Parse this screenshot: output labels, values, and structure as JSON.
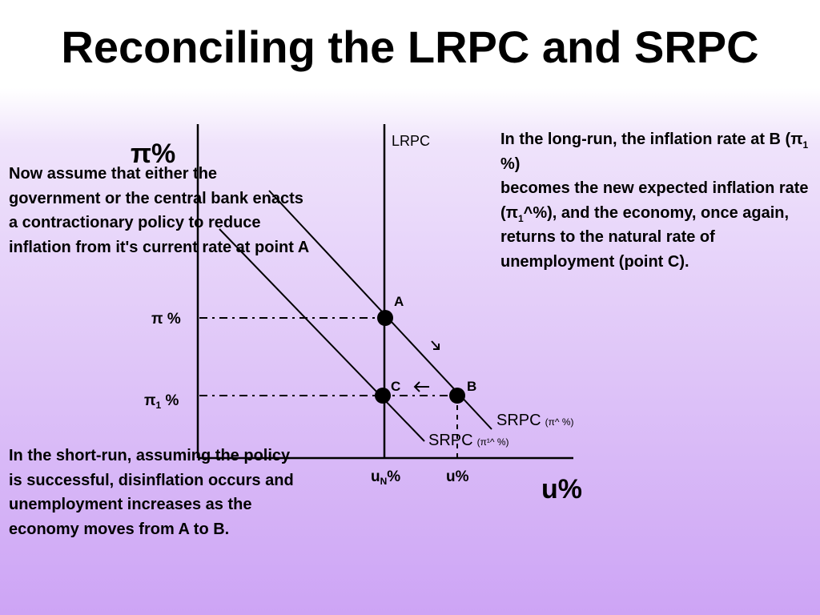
{
  "title": "Reconciling the LRPC and SRPC",
  "axes": {
    "y_label": "π%",
    "x_label": "u%"
  },
  "curves": {
    "lrpc": "LRPC",
    "srpc_initial": {
      "name": "SRPC",
      "sub": "(π^ %)"
    },
    "srpc_new": {
      "name": "SRPC",
      "sub": "(π¹^ %)"
    }
  },
  "points": {
    "a": "A",
    "b": "B",
    "c": "C"
  },
  "ticks": {
    "pi": "π %",
    "pi1_main": "π",
    "pi1_sub": "1",
    "pi1_unit": " %",
    "un_main": "u",
    "un_sub": "N",
    "un_unit": "%",
    "u": "u%"
  },
  "notes": {
    "left": "Now assume that either the government or the central bank enacts a contractionary policy to reduce inflation from it's current rate at point A",
    "right_l1_pre": "In the long-run, the inflation rate at B (π",
    "right_l1_sub": "1",
    "right_l1_post": " %)",
    "right_l2_pre": "becomes the new expected inflation rate (π",
    "right_l2_sub": "1",
    "right_l2_post": "^%), and the economy, once again, returns to the natural rate of unemployment  (point C).",
    "bottom": "In the short-run, assuming the policy is successful, disinflation occurs and unemployment increases as the economy moves from A to B."
  }
}
